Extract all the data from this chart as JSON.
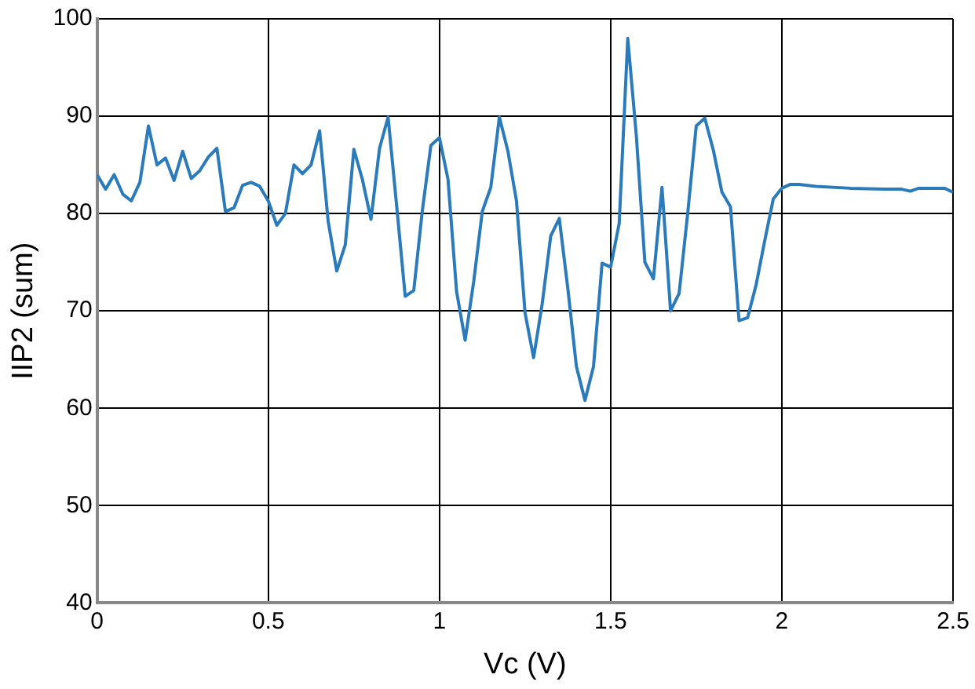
{
  "chart_data": {
    "type": "line",
    "xlabel": "Vc (V)",
    "ylabel": "IIP2 (sum)",
    "xlim": [
      0,
      2.5
    ],
    "xticks": [
      0,
      0.5,
      1,
      1.5,
      2,
      2.5
    ],
    "ylim": [
      40,
      100
    ],
    "yticks": [
      40,
      50,
      60,
      70,
      80,
      90,
      100
    ],
    "grid": true,
    "legend": false,
    "marker": "none",
    "line_style": "solid",
    "series": [
      {
        "color": "#2b7bba",
        "x": [
          0,
          0.025,
          0.05,
          0.075,
          0.1,
          0.125,
          0.15,
          0.175,
          0.2,
          0.225,
          0.25,
          0.275,
          0.3,
          0.325,
          0.35,
          0.375,
          0.4,
          0.425,
          0.45,
          0.475,
          0.5,
          0.525,
          0.55,
          0.575,
          0.6,
          0.625,
          0.65,
          0.675,
          0.7,
          0.725,
          0.75,
          0.775,
          0.8,
          0.825,
          0.85,
          0.875,
          0.9,
          0.925,
          0.95,
          0.975,
          1,
          1.025,
          1.05,
          1.075,
          1.1,
          1.125,
          1.15,
          1.175,
          1.2,
          1.225,
          1.25,
          1.275,
          1.3,
          1.325,
          1.35,
          1.375,
          1.4,
          1.425,
          1.45,
          1.475,
          1.5,
          1.525,
          1.55,
          1.575,
          1.6,
          1.625,
          1.65,
          1.675,
          1.7,
          1.725,
          1.75,
          1.775,
          1.8,
          1.825,
          1.85,
          1.875,
          1.9,
          1.925,
          1.95,
          1.975,
          2,
          2.025,
          2.05,
          2.1,
          2.2,
          2.3,
          2.35,
          2.375,
          2.4,
          2.45,
          2.475,
          2.5
        ],
        "values": [
          84,
          82.5,
          84,
          82,
          81.3,
          83.2,
          89,
          85,
          85.7,
          83.4,
          86.4,
          83.6,
          84.4,
          85.8,
          86.7,
          80.2,
          80.6,
          82.9,
          83.2,
          82.8,
          81.3,
          78.8,
          80,
          85,
          84.1,
          85,
          88.5,
          79.2,
          74.1,
          76.8,
          86.6,
          83.5,
          79.4,
          86.7,
          89.9,
          80.8,
          71.5,
          72.1,
          80.3,
          87,
          87.8,
          83.5,
          72,
          67,
          73,
          80.2,
          82.7,
          89.9,
          86.4,
          81.3,
          69.8,
          65.2,
          70.7,
          77.7,
          79.5,
          72.3,
          64.3,
          60.8,
          64.3,
          74.9,
          74.5,
          79,
          98,
          88,
          75,
          73.3,
          82.7,
          70,
          71.8,
          80,
          89,
          89.8,
          86.5,
          82.2,
          80.7,
          69,
          69.3,
          72.7,
          77.2,
          81.5,
          82.6,
          83,
          83,
          82.8,
          82.6,
          82.5,
          82.5,
          82.3,
          82.6,
          82.6,
          82.6,
          82.2
        ]
      }
    ]
  }
}
